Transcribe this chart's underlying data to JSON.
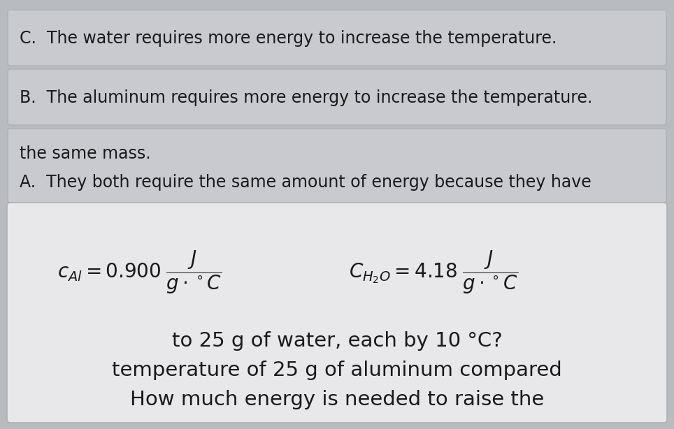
{
  "fig_width": 9.64,
  "fig_height": 6.14,
  "dpi": 100,
  "background_color": "#b8bcc0",
  "top_box_color": "#e8e8ea",
  "answer_box_color_A": "#c8cacf",
  "answer_box_color_B": "#c8cacf",
  "answer_box_color_C": "#c8cacf",
  "title_line1": "How much energy is needed to raise the",
  "title_line2": "temperature of 25 g of aluminum compared",
  "title_line3": "to 25 g of water, each by 10 °C?",
  "answer_A_line1": "A.  They both require the same amount of energy because they have",
  "answer_A_line2": "the same mass.",
  "answer_B": "B.  The aluminum requires more energy to increase the temperature.",
  "answer_C": "C.  The water requires more energy to increase the temperature.",
  "title_fontsize": 21,
  "formula_fontsize": 20,
  "answer_fontsize": 17,
  "text_color": "#1a1a1a"
}
